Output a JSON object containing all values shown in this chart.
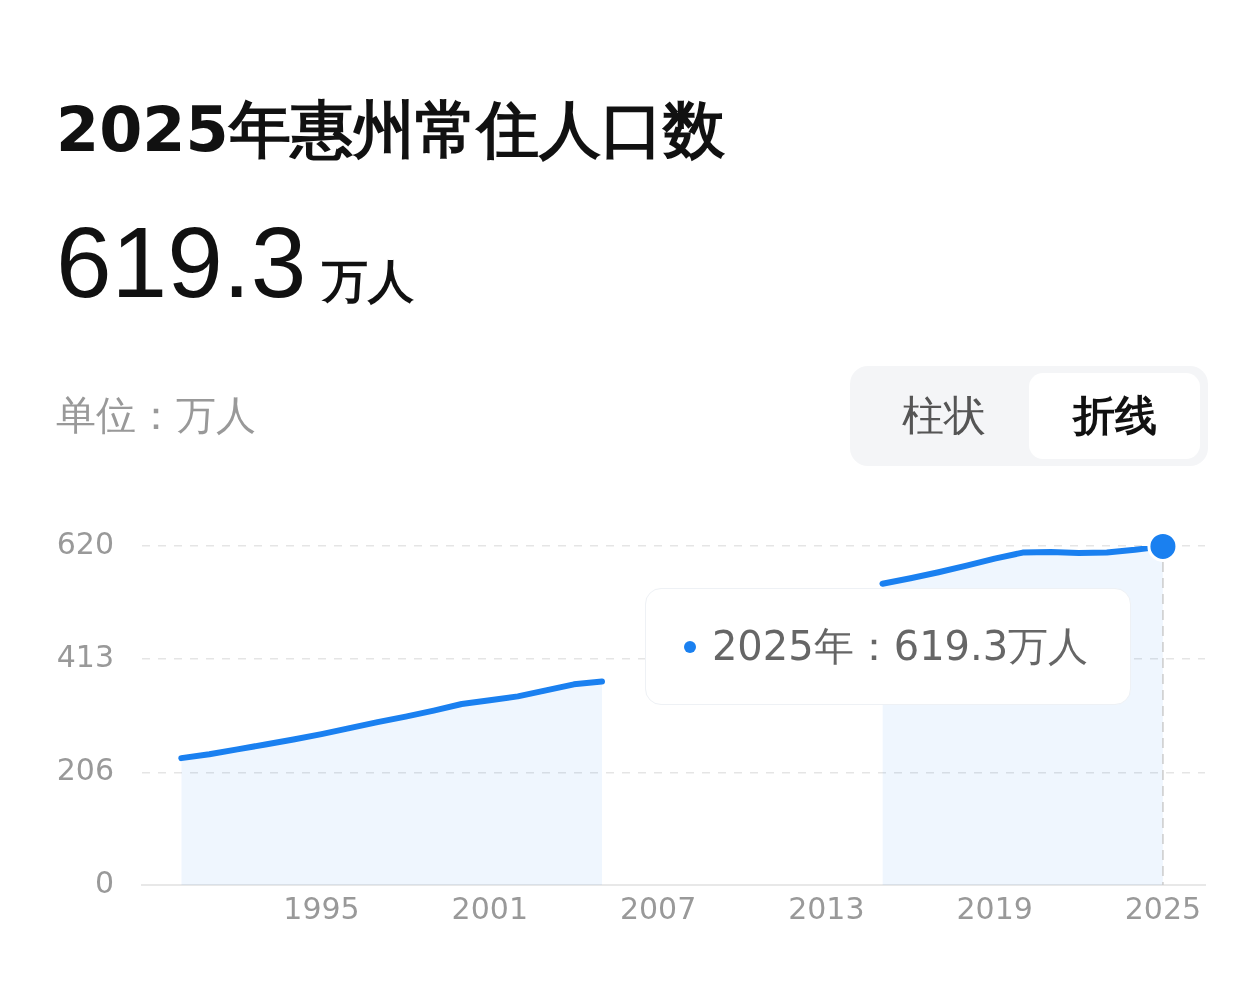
{
  "chart_data": {
    "type": "area",
    "title": "2025年惠州常住人口数",
    "subtitle": "619.3 万人",
    "x": [
      1990,
      1991,
      1992,
      1993,
      1994,
      1995,
      1996,
      1997,
      1998,
      1999,
      2000,
      2001,
      2002,
      2003,
      2004,
      2005,
      2006,
      2007,
      2008,
      2009,
      2010,
      2011,
      2012,
      2013,
      2014,
      2015,
      2016,
      2017,
      2018,
      2019,
      2020,
      2021,
      2022,
      2023,
      2024,
      2025
    ],
    "series": [
      {
        "color": "#1a80f0",
        "values": [
          232,
          239,
          248,
          257,
          266,
          276,
          287,
          298,
          308,
          319,
          331,
          338,
          345,
          356,
          367,
          372,
          null,
          null,
          null,
          null,
          null,
          null,
          null,
          null,
          null,
          551,
          561,
          572,
          584,
          597,
          608,
          609,
          607,
          608,
          613,
          619.3
        ]
      }
    ],
    "xlim": [
      1988.6,
      2026.5
    ],
    "xticks": [
      1995,
      2001,
      2007,
      2013,
      2019,
      2025
    ],
    "ylim": [
      0,
      620
    ],
    "yticks": [
      0,
      206,
      413,
      620
    ],
    "ref_lines": [
      {
        "axis": "x",
        "value": 2025,
        "color": "#cccccc",
        "line_style": "dashed"
      }
    ],
    "grid": "y",
    "legend": false,
    "marker": "none",
    "line_style": "solid",
    "annotations": [
      "单位：万人",
      "柱状",
      "折线",
      {
        "text": "2025年：619.3万人",
        "x": 2025,
        "y": 619.3
      }
    ]
  }
}
